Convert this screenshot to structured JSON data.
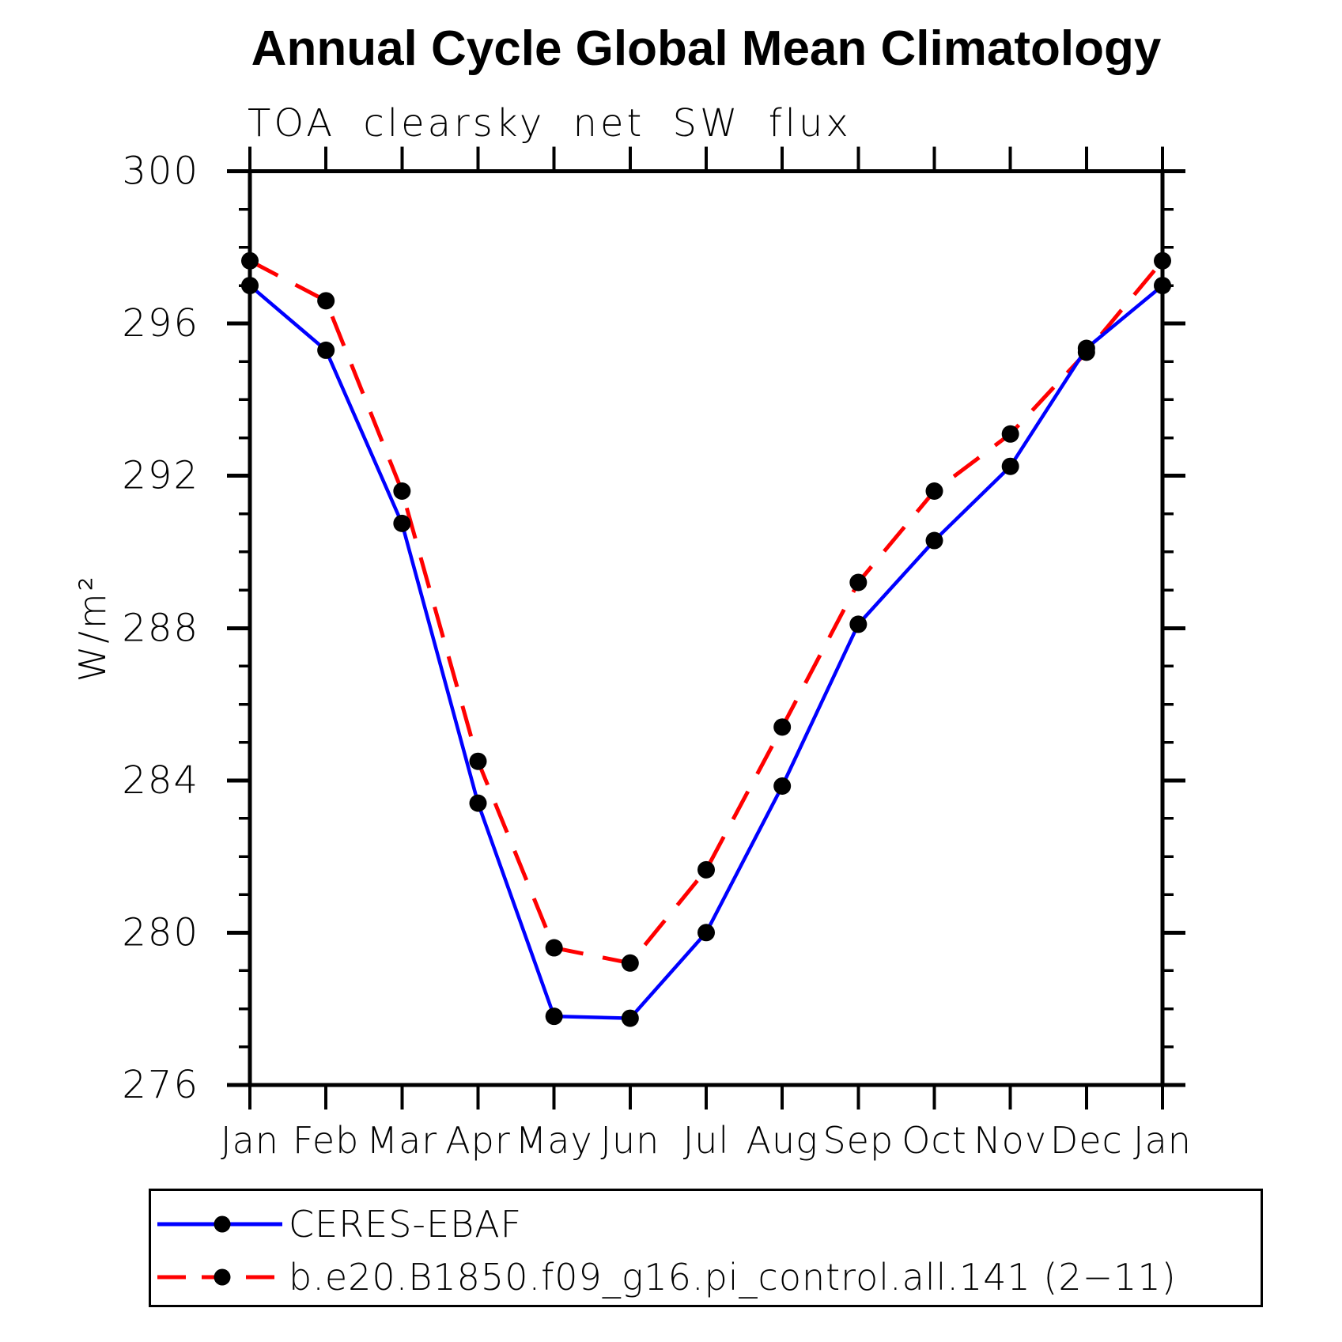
{
  "title": "Annual Cycle Global Mean Climatology",
  "chart_data": {
    "type": "line",
    "title": "Annual Cycle Global Mean Climatology",
    "subtitle": "TOA clearsky net SW flux",
    "ylabel": "W/m²",
    "xlabel": "",
    "categories": [
      "Jan",
      "Feb",
      "Mar",
      "Apr",
      "May",
      "Jun",
      "Jul",
      "Aug",
      "Sep",
      "Oct",
      "Nov",
      "Dec",
      "Jan"
    ],
    "ylim": [
      276,
      300
    ],
    "ytick_major": [
      276,
      280,
      284,
      288,
      292,
      296,
      300
    ],
    "ytick_minor_step": 1,
    "grid": false,
    "legend_position": "bottom",
    "series": [
      {
        "name": "CERES-EBAF",
        "color": "#0000ff",
        "line_style": "solid",
        "marker": "filled-circle",
        "marker_color": "#000000",
        "values": [
          297.0,
          295.3,
          290.75,
          283.4,
          277.8,
          277.75,
          280.0,
          283.85,
          288.1,
          290.3,
          292.25,
          295.35,
          297.0
        ]
      },
      {
        "name": "b.e20.B1850.f09_g16.pi_control.all.141 (2−11)",
        "color": "#ff0000",
        "line_style": "dashed",
        "marker": "filled-circle",
        "marker_color": "#000000",
        "values": [
          297.65,
          296.6,
          291.6,
          284.5,
          279.6,
          279.2,
          281.65,
          285.4,
          289.2,
          291.6,
          293.1,
          295.25,
          297.65
        ]
      }
    ]
  }
}
